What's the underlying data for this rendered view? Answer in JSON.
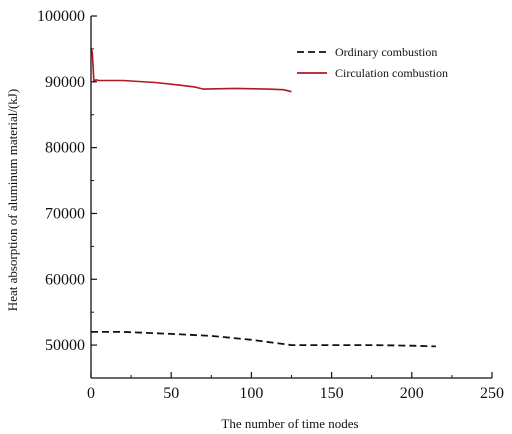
{
  "chart_data": {
    "type": "line",
    "xlabel": "The number of time nodes",
    "ylabel": "Heat absorption of aluminum material/(kJ)",
    "xlim": [
      0,
      250
    ],
    "ylim": [
      45000,
      100000
    ],
    "x_ticks": [
      0,
      50,
      100,
      150,
      200,
      250
    ],
    "x_tick_labels": [
      "0",
      "50",
      "100",
      "150",
      "200",
      "250"
    ],
    "y_ticks": [
      50000,
      60000,
      70000,
      80000,
      90000,
      100000
    ],
    "y_tick_labels": [
      "50000",
      "60000",
      "70000",
      "80000",
      "90000",
      "100000"
    ],
    "legend_position": "top-right",
    "series": [
      {
        "name": "Ordinary combustion",
        "style": "dashed",
        "color": "#111111",
        "x": [
          0,
          20,
          50,
          75,
          100,
          125,
          150,
          175,
          200,
          215
        ],
        "y": [
          52000,
          52000,
          51700,
          51400,
          50800,
          50000,
          50000,
          50000,
          49900,
          49800
        ]
      },
      {
        "name": "Circulation combustion",
        "style": "solid",
        "color": "#b0191e",
        "x": [
          0,
          0.8,
          1.8,
          3,
          5,
          20,
          40,
          55,
          65,
          70,
          90,
          110,
          120,
          125
        ],
        "y": [
          95000,
          94500,
          90000,
          90300,
          90200,
          90200,
          89900,
          89500,
          89200,
          88900,
          89000,
          88900,
          88800,
          88500
        ]
      }
    ]
  }
}
